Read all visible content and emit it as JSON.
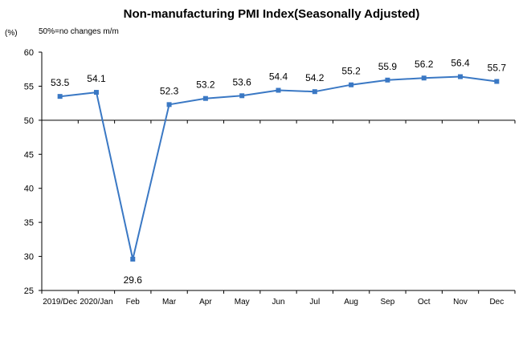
{
  "chart_data": {
    "type": "line",
    "title": "Non-manufacturing PMI Index(Seasonally Adjusted)",
    "ylabel": "(%)",
    "note": "50%=no changes  m/m",
    "categories": [
      "2019/Dec",
      "2020/Jan",
      "Feb",
      "Mar",
      "Apr",
      "May",
      "Jun",
      "Jul",
      "Aug",
      "Sep",
      "Oct",
      "Nov",
      "Dec"
    ],
    "series": [
      {
        "values": [
          53.5,
          54.1,
          29.6,
          52.3,
          53.2,
          53.6,
          54.4,
          54.2,
          55.2,
          55.9,
          56.2,
          56.4,
          55.7
        ]
      }
    ],
    "data_labels": [
      "53.5",
      "54.1",
      "29.6",
      "52.3",
      "53.2",
      "53.6",
      "54.4",
      "54.2",
      "55.2",
      "55.9",
      "56.2",
      "56.4",
      "55.7"
    ],
    "ylim": [
      25,
      60
    ],
    "yticks": [
      25,
      30,
      35,
      40,
      45,
      50,
      55,
      60
    ],
    "baseline": 50,
    "grid": false,
    "line_color": "#3a78c4"
  }
}
